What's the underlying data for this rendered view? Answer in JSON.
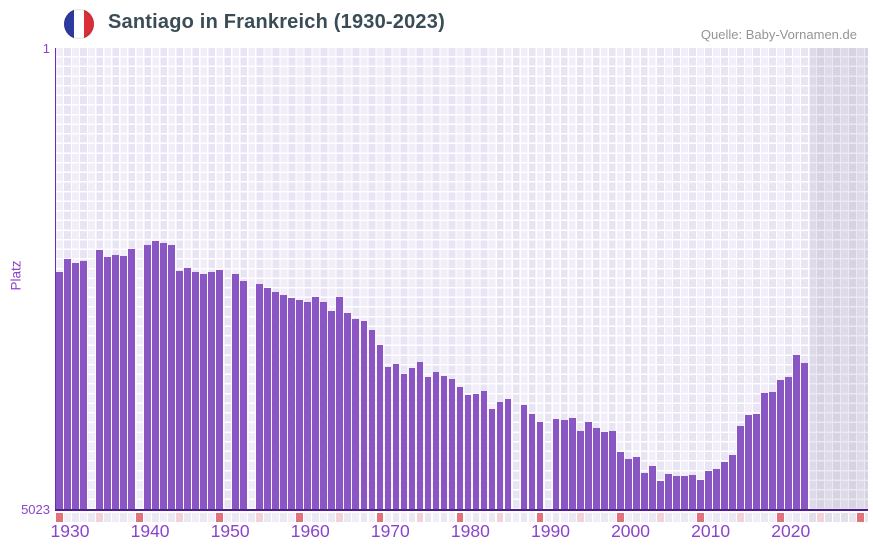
{
  "header": {
    "title": "Santiago in Frankreich (1930-2023)",
    "source": "Quelle: Baby-Vornamen.de",
    "flag_icon": "france-flag-icon"
  },
  "axes": {
    "y_label": "Platz",
    "y_top_tick": "1",
    "y_bottom_tick": "5023",
    "x_tick_labels": [
      "1930",
      "1940",
      "1950",
      "1960",
      "1970",
      "1980",
      "1990",
      "2000",
      "2010",
      "2020"
    ]
  },
  "colors": {
    "bar": "#8a56c3",
    "axis_label": "#8b44cb",
    "baseline": "#4b1d8e",
    "axis_line": "#6633aa",
    "tick_decade": "#e17279",
    "tick_half_decade": "#f4d0d9",
    "tick_year_a": "#f2eef8",
    "tick_year_b": "#ebe7f3",
    "tick_future_a": "#e9e6f0",
    "tick_future_b": "#e2deea",
    "title": "#3a4d57",
    "source": "#949494"
  },
  "chart_data": {
    "type": "bar",
    "title": "Santiago in Frankreich (1930-2023)",
    "xlabel": "",
    "ylabel": "Platz",
    "ylim": [
      1,
      5023
    ],
    "y_inverted": true,
    "axis_year_range": [
      1930,
      2031
    ],
    "data_end_year": 2023,
    "future_band_start_year": 2024,
    "legend": "none",
    "missing_years": [
      1934,
      1940,
      1951,
      1954,
      1987,
      1991
    ],
    "categories": [
      1930,
      1931,
      1932,
      1933,
      1934,
      1935,
      1936,
      1937,
      1938,
      1939,
      1940,
      1941,
      1942,
      1943,
      1944,
      1945,
      1946,
      1947,
      1948,
      1949,
      1950,
      1951,
      1952,
      1953,
      1954,
      1955,
      1956,
      1957,
      1958,
      1959,
      1960,
      1961,
      1962,
      1963,
      1964,
      1965,
      1966,
      1967,
      1968,
      1969,
      1970,
      1971,
      1972,
      1973,
      1974,
      1975,
      1976,
      1977,
      1978,
      1979,
      1980,
      1981,
      1982,
      1983,
      1984,
      1985,
      1986,
      1987,
      1988,
      1989,
      1990,
      1991,
      1992,
      1993,
      1994,
      1995,
      1996,
      1997,
      1998,
      1999,
      2000,
      2001,
      2002,
      2003,
      2004,
      2005,
      2006,
      2007,
      2008,
      2009,
      2010,
      2011,
      2012,
      2013,
      2014,
      2015,
      2016,
      2017,
      2018,
      2019,
      2020,
      2021,
      2022,
      2023
    ],
    "values": [
      2440,
      2300,
      2345,
      2320,
      null,
      2200,
      2280,
      2255,
      2265,
      2190,
      null,
      2145,
      2105,
      2125,
      2150,
      2430,
      2400,
      2440,
      2465,
      2440,
      2420,
      null,
      2465,
      2540,
      null,
      2570,
      2615,
      2660,
      2690,
      2725,
      2745,
      2770,
      2715,
      2770,
      2865,
      2715,
      2890,
      2955,
      2975,
      3075,
      3235,
      3475,
      3445,
      3550,
      3485,
      3420,
      3585,
      3530,
      3575,
      3605,
      3695,
      3780,
      3770,
      3735,
      3935,
      3855,
      3825,
      null,
      3890,
      3990,
      4075,
      null,
      4040,
      4055,
      4030,
      4175,
      4075,
      4140,
      4185,
      4175,
      4400,
      4480,
      4455,
      4630,
      4555,
      4720,
      4640,
      4665,
      4665,
      4650,
      4705,
      4610,
      4585,
      4510,
      4435,
      4120,
      4000,
      3985,
      3760,
      3750,
      3615,
      3585,
      3345,
      3430
    ]
  }
}
